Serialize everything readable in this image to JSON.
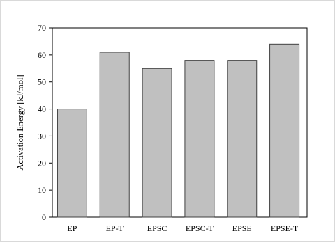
{
  "chart_data": {
    "type": "bar",
    "categories": [
      "EP",
      "EP-T",
      "EPSC",
      "EPSC-T",
      "EPSE",
      "EPSE-T"
    ],
    "values": [
      40,
      61,
      55,
      58,
      58,
      64
    ],
    "ylabel": "Activation Energy [kJ/mol]",
    "xlabel": "",
    "ylim": [
      0,
      70
    ],
    "yticks": [
      0,
      10,
      20,
      30,
      40,
      50,
      60,
      70
    ],
    "grid": false,
    "legend": "none",
    "colors": {
      "bar_fill": "#c0c0c0",
      "bar_stroke": "#404040",
      "axis": "#000000",
      "outer_border": "#d9d9d9"
    }
  }
}
